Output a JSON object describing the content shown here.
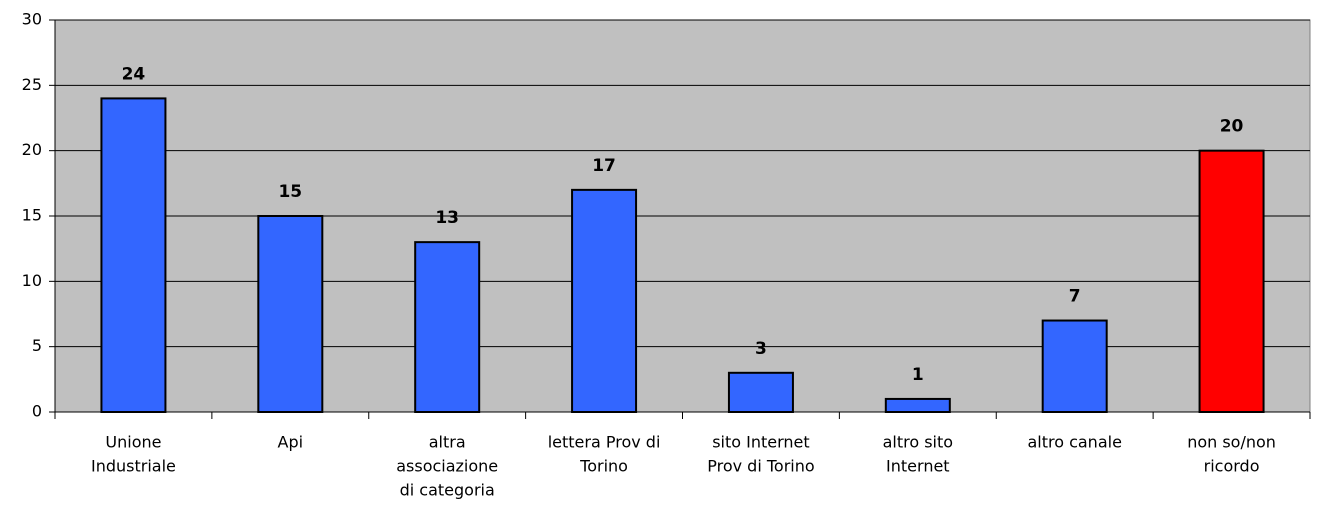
{
  "chart_data": {
    "type": "bar",
    "categories": [
      [
        "Unione",
        "Industriale"
      ],
      [
        "Api"
      ],
      [
        "altra",
        "associazione",
        "di categoria"
      ],
      [
        "lettera Prov di",
        "Torino"
      ],
      [
        "sito Internet",
        "Prov di Torino"
      ],
      [
        "altro sito",
        "Internet"
      ],
      [
        "altro canale"
      ],
      [
        "non so/non",
        "ricordo"
      ]
    ],
    "values": [
      24,
      15,
      13,
      17,
      3,
      1,
      7,
      20
    ],
    "colors": [
      "#3366ff",
      "#3366ff",
      "#3366ff",
      "#3366ff",
      "#3366ff",
      "#3366ff",
      "#3366ff",
      "#ff0000"
    ],
    "ylim": [
      0,
      30
    ],
    "yticks": [
      0,
      5,
      10,
      15,
      20,
      25,
      30
    ],
    "grid": true
  }
}
